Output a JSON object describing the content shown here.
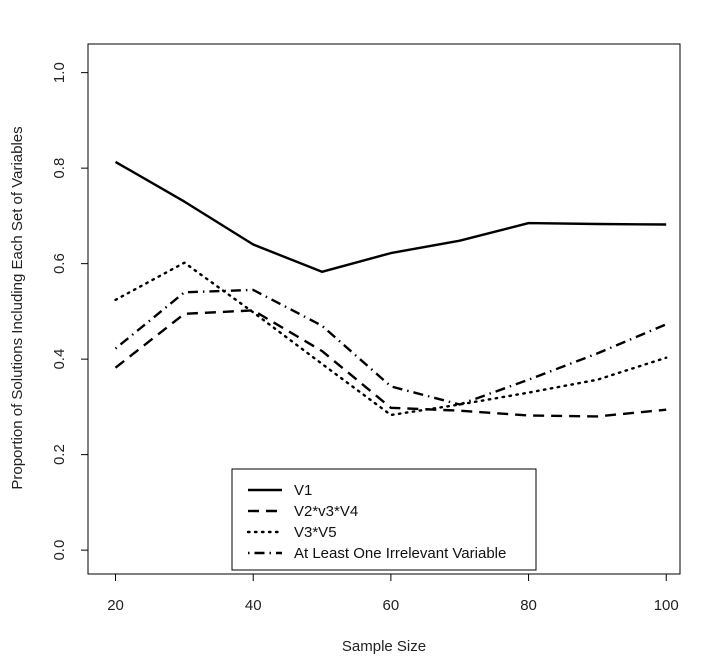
{
  "chart_data": {
    "type": "line",
    "xlabel": "Sample Size",
    "ylabel": "Proportion of Solutions Including Each Set of Variables",
    "xlim": [
      16,
      102
    ],
    "ylim": [
      -0.05,
      1.06
    ],
    "x_ticks": [
      20,
      40,
      60,
      80,
      100
    ],
    "y_ticks": [
      0.0,
      0.2,
      0.4,
      0.6,
      0.8,
      1.0
    ],
    "x_tick_labels": [
      "20",
      "40",
      "60",
      "80",
      "100"
    ],
    "y_tick_labels": [
      "0.0",
      "0.2",
      "0.4",
      "0.6",
      "0.8",
      "1.0"
    ],
    "grid": false,
    "legend_position": "bottom-center",
    "x": [
      20,
      30,
      40,
      50,
      60,
      70,
      80,
      90,
      100
    ],
    "series": [
      {
        "name": "V1",
        "line_style": "solid",
        "values": [
          0.813,
          0.73,
          0.64,
          0.583,
          0.622,
          0.648,
          0.685,
          0.683,
          0.682
        ]
      },
      {
        "name": "V2*v3*V4",
        "line_style": "dashed",
        "values": [
          0.382,
          0.495,
          0.502,
          0.417,
          0.298,
          0.292,
          0.282,
          0.28,
          0.294
        ]
      },
      {
        "name": "V3*V5",
        "line_style": "dotted",
        "values": [
          0.524,
          0.602,
          0.498,
          0.39,
          0.283,
          0.305,
          0.33,
          0.357,
          0.403
        ]
      },
      {
        "name": "At Least One Irrelevant Variable",
        "line_style": "dotdash",
        "values": [
          0.422,
          0.54,
          0.545,
          0.47,
          0.343,
          0.305,
          0.357,
          0.412,
          0.473
        ]
      }
    ]
  }
}
